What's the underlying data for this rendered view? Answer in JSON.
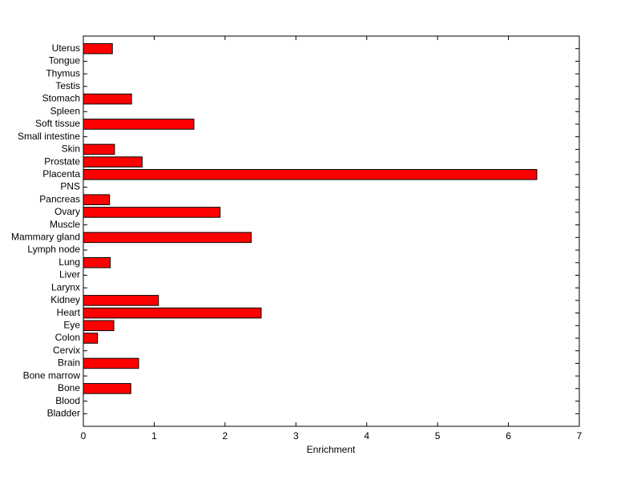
{
  "chart_data": {
    "type": "barh",
    "x_label": "Enrichment",
    "categories": [
      "Bladder",
      "Blood",
      "Bone",
      "Bone marrow",
      "Brain",
      "Cervix",
      "Colon",
      "Eye",
      "Heart",
      "Kidney",
      "Larynx",
      "Liver",
      "Lung",
      "Lymph node",
      "Mammary gland",
      "Muscle",
      "Ovary",
      "Pancreas",
      "PNS",
      "Placenta",
      "Prostate",
      "Skin",
      "Small intestine",
      "Soft tissue",
      "Spleen",
      "Stomach",
      "Testis",
      "Thymus",
      "Tongue",
      "Uterus"
    ],
    "values": [
      0,
      0,
      0.67,
      0,
      0.78,
      0,
      0.2,
      0.43,
      2.51,
      1.06,
      0,
      0,
      0.38,
      0,
      2.37,
      0,
      1.93,
      0.37,
      0,
      6.4,
      0.83,
      0.44,
      0,
      1.56,
      0,
      0.68,
      0,
      0,
      0,
      0.41
    ],
    "color": "#ff0000",
    "xlim": [
      0,
      7
    ],
    "xticks": [
      0,
      1,
      2,
      3,
      4,
      5,
      6,
      7
    ]
  }
}
